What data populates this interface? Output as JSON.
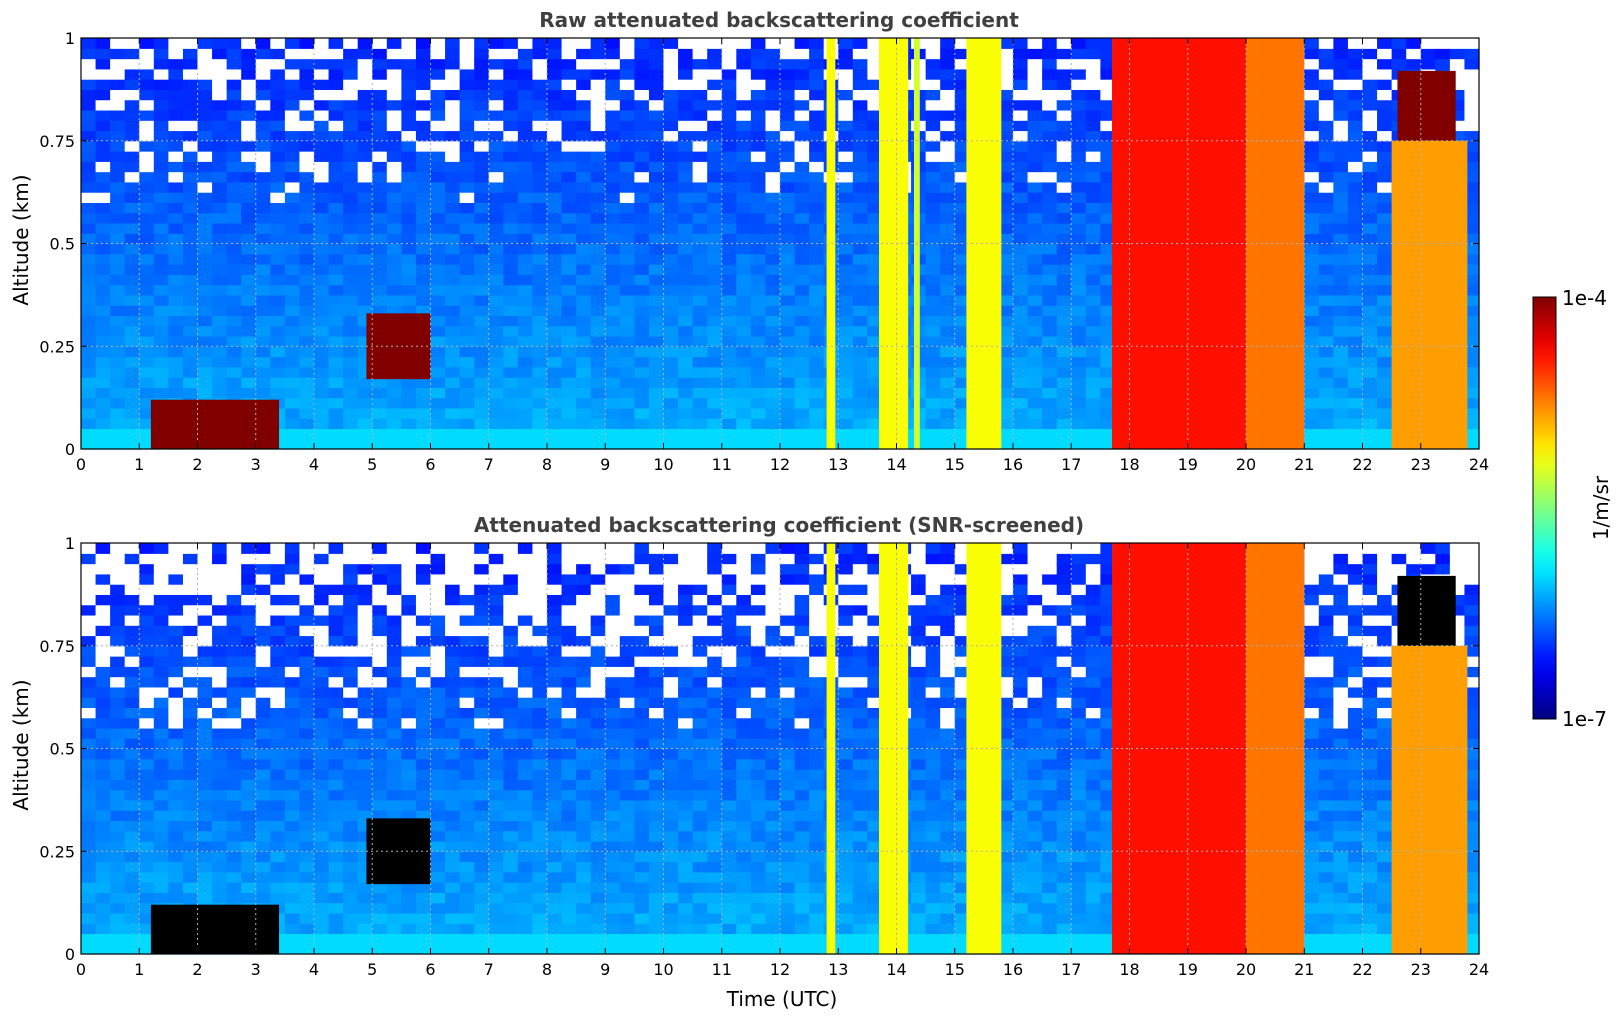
{
  "chart_data": [
    {
      "type": "heatmap",
      "title": "Raw attenuated backscattering coefficient",
      "xlabel": "",
      "ylabel": "Altitude (km)",
      "xlim": [
        0,
        24
      ],
      "ylim": [
        0,
        1
      ],
      "x_ticks": [
        "0",
        "1",
        "2",
        "3",
        "4",
        "5",
        "6",
        "7",
        "8",
        "9",
        "10",
        "11",
        "12",
        "13",
        "14",
        "15",
        "16",
        "17",
        "18",
        "19",
        "20",
        "21",
        "22",
        "23",
        "24"
      ],
      "y_ticks": [
        "0",
        "0.25",
        "0.5",
        "0.75",
        "1"
      ],
      "grid": true,
      "screened": false,
      "features": [
        {
          "t_start": 1.2,
          "t_end": 3.4,
          "alt_bottom": 0.0,
          "alt_top": 0.12,
          "level": 1.0
        },
        {
          "t_start": 4.9,
          "t_end": 6.0,
          "alt_bottom": 0.17,
          "alt_top": 0.33,
          "level": 1.0
        },
        {
          "t_start": 12.8,
          "t_end": 12.95,
          "alt_bottom": 0.0,
          "alt_top": 1.0,
          "level": 0.62
        },
        {
          "t_start": 13.7,
          "t_end": 14.2,
          "alt_bottom": 0.0,
          "alt_top": 1.0,
          "level": 0.62
        },
        {
          "t_start": 14.3,
          "t_end": 14.4,
          "alt_bottom": 0.0,
          "alt_top": 1.0,
          "level": 0.58
        },
        {
          "t_start": 15.2,
          "t_end": 15.8,
          "alt_bottom": 0.0,
          "alt_top": 1.0,
          "level": 0.62
        },
        {
          "t_start": 17.7,
          "t_end": 20.0,
          "alt_bottom": 0.0,
          "alt_top": 1.0,
          "level": 0.86
        },
        {
          "t_start": 20.0,
          "t_end": 21.0,
          "alt_bottom": 0.0,
          "alt_top": 1.0,
          "level": 0.76
        },
        {
          "t_start": 22.5,
          "t_end": 23.8,
          "alt_bottom": 0.0,
          "alt_top": 0.75,
          "level": 0.72
        },
        {
          "t_start": 22.6,
          "t_end": 23.6,
          "alt_bottom": 0.75,
          "alt_top": 0.92,
          "level": 1.0
        }
      ]
    },
    {
      "type": "heatmap",
      "title": "Attenuated backscattering coefficient (SNR-screened)",
      "xlabel": "Time (UTC)",
      "ylabel": "Altitude (km)",
      "xlim": [
        0,
        24
      ],
      "ylim": [
        0,
        1
      ],
      "x_ticks": [
        "0",
        "1",
        "2",
        "3",
        "4",
        "5",
        "6",
        "7",
        "8",
        "9",
        "10",
        "11",
        "12",
        "13",
        "14",
        "15",
        "16",
        "17",
        "18",
        "19",
        "20",
        "21",
        "22",
        "23",
        "24"
      ],
      "y_ticks": [
        "0",
        "0.25",
        "0.5",
        "0.75",
        "1"
      ],
      "grid": true,
      "screened": true,
      "features": [
        {
          "t_start": 1.2,
          "t_end": 3.4,
          "alt_bottom": 0.0,
          "alt_top": 0.12,
          "level": 1.0
        },
        {
          "t_start": 4.9,
          "t_end": 6.0,
          "alt_bottom": 0.17,
          "alt_top": 0.33,
          "level": 1.0
        },
        {
          "t_start": 12.8,
          "t_end": 12.95,
          "alt_bottom": 0.0,
          "alt_top": 1.0,
          "level": 0.62
        },
        {
          "t_start": 13.7,
          "t_end": 14.2,
          "alt_bottom": 0.0,
          "alt_top": 1.0,
          "level": 0.62
        },
        {
          "t_start": 15.2,
          "t_end": 15.8,
          "alt_bottom": 0.0,
          "alt_top": 1.0,
          "level": 0.62
        },
        {
          "t_start": 17.7,
          "t_end": 20.0,
          "alt_bottom": 0.0,
          "alt_top": 1.0,
          "level": 0.86
        },
        {
          "t_start": 20.0,
          "t_end": 21.0,
          "alt_bottom": 0.0,
          "alt_top": 1.0,
          "level": 0.76
        },
        {
          "t_start": 22.5,
          "t_end": 23.8,
          "alt_bottom": 0.0,
          "alt_top": 0.75,
          "level": 0.72
        },
        {
          "t_start": 22.6,
          "t_end": 23.6,
          "alt_bottom": 0.75,
          "alt_top": 0.92,
          "level": 1.0
        }
      ]
    }
  ],
  "colorbar": {
    "label": "1/m/sr",
    "min_label": "1e-7",
    "max_label": "1e-4",
    "colormap": "jet",
    "scale": "log"
  },
  "colors": {
    "title": "#404040",
    "grid": "#b0b0b0",
    "background": "#ffffff",
    "clear_sky": "#1a3cff",
    "saturated_mask": "#000000"
  }
}
